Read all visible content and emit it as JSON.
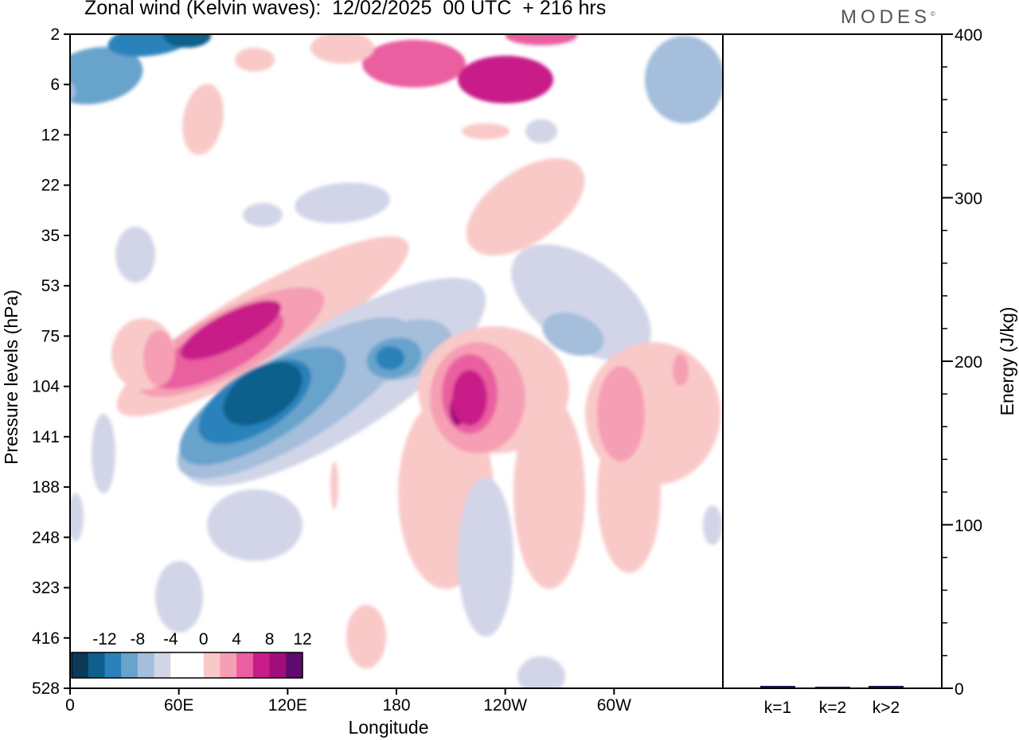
{
  "title": "Zonal wind (Kelvin waves):  12/02/2025  00 UTC  + 216 hrs",
  "logo": "MODES",
  "chart_data": [
    {
      "type": "heatmap",
      "title": "Zonal wind (Kelvin waves):  12/02/2025  00 UTC  + 216 hrs",
      "xlabel": "Longitude",
      "ylabel": "Pressure levels (hPa)",
      "x_ticks": [
        {
          "lon": 0,
          "label": "0"
        },
        {
          "lon": 60,
          "label": "60E"
        },
        {
          "lon": 120,
          "label": "120E"
        },
        {
          "lon": 180,
          "label": "180"
        },
        {
          "lon": 240,
          "label": "120W"
        },
        {
          "lon": 300,
          "label": "60W"
        }
      ],
      "xlim": [
        0,
        360
      ],
      "y_levels": [
        "2",
        "6",
        "12",
        "22",
        "35",
        "53",
        "75",
        "104",
        "141",
        "188",
        "248",
        "323",
        "416",
        "528"
      ],
      "colorbar": {
        "labels": [
          "-12",
          "-8",
          "-4",
          "0",
          "4",
          "8",
          "12"
        ],
        "colors": [
          "#0a3a55",
          "#0d5f8c",
          "#2a82bb",
          "#68a3cc",
          "#a4bedb",
          "#d2d5e8",
          "#ffffff",
          "#ffffff",
          "#f9c9c8",
          "#f59eb4",
          "#ea5fa0",
          "#c81d88",
          "#a00e79",
          "#5f0a6e"
        ]
      },
      "features": [
        {
          "sign": "negative",
          "level": 2,
          "lon": 75,
          "pressure": "12",
          "amplitude": "-8"
        },
        {
          "sign": "negative",
          "level": 1,
          "lon": 12,
          "pressure": "6",
          "amplitude": "-8"
        },
        {
          "sign": "positive",
          "level": 1,
          "lon": 240,
          "pressure": "6",
          "amplitude": "8"
        },
        {
          "sign": "positive",
          "level": 1,
          "lon": 193,
          "pressure": "6",
          "amplitude": "8"
        },
        {
          "sign": "positive",
          "level": 2,
          "lon": 108,
          "pressure": "75",
          "amplitude": "12"
        },
        {
          "sign": "negative",
          "level": 3,
          "lon": 105,
          "pressure": "120",
          "amplitude": "-12"
        },
        {
          "sign": "negative",
          "level": 2,
          "lon": 180,
          "pressure": "90",
          "amplitude": "-8"
        },
        {
          "sign": "positive",
          "level": 2,
          "lon": 219,
          "pressure": "120",
          "amplitude": "8"
        },
        {
          "sign": "positive",
          "level": 1,
          "lon": 320,
          "pressure": "104",
          "amplitude": "4"
        },
        {
          "sign": "negative",
          "level": 1,
          "lon": 270,
          "pressure": "53",
          "amplitude": "-4"
        },
        {
          "sign": "positive",
          "level": 1,
          "lon": 265,
          "pressure": "22",
          "amplitude": "4"
        }
      ]
    },
    {
      "type": "bar",
      "categories": [
        "k=1",
        "k=2",
        "k>2"
      ],
      "values": [
        1,
        0.5,
        1
      ],
      "ylabel": "Energy (J/kg)",
      "ylim": [
        0,
        400
      ],
      "y_ticks": [
        0,
        100,
        200,
        300,
        400
      ],
      "bar_color": "#1a1a4a"
    }
  ]
}
